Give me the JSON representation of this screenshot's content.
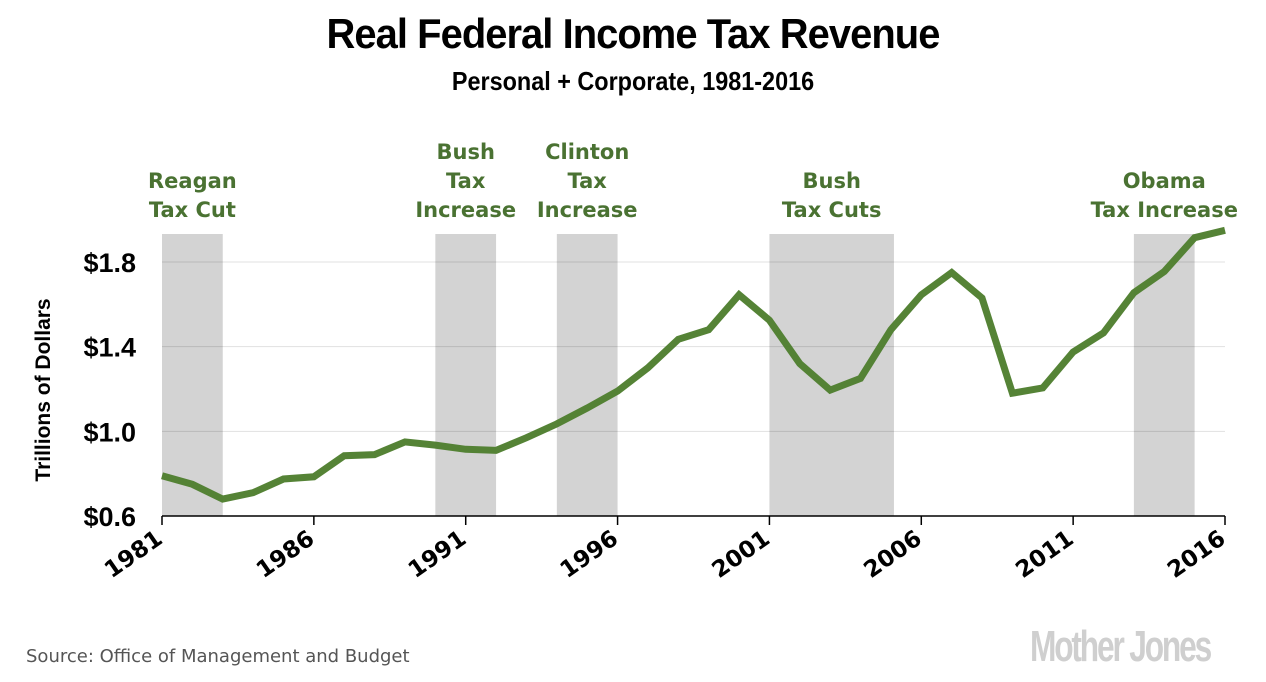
{
  "chart_data": {
    "type": "line",
    "title": "Real Federal Income Tax Revenue",
    "subtitle": "Personal + Corporate, 1981-2016",
    "xlabel": "",
    "ylabel": "Trillions of Dollars",
    "xlim": [
      1981,
      2016
    ],
    "ylim": [
      0.6,
      1.95
    ],
    "grid": true,
    "x_ticks": [
      1981,
      1986,
      1991,
      1996,
      2001,
      2006,
      2011,
      2016
    ],
    "y_ticks": [
      {
        "value": 0.6,
        "label": "$0.6"
      },
      {
        "value": 1.0,
        "label": "$1.0"
      },
      {
        "value": 1.4,
        "label": "$1.4"
      },
      {
        "value": 1.8,
        "label": "$1.8"
      }
    ],
    "series": [
      {
        "name": "Real Federal Income Tax Revenue",
        "color": "#4f7f2f",
        "x": [
          1981,
          1982,
          1983,
          1984,
          1985,
          1986,
          1987,
          1988,
          1989,
          1990,
          1991,
          1992,
          1993,
          1994,
          1995,
          1996,
          1997,
          1998,
          1999,
          2000,
          2001,
          2002,
          2003,
          2004,
          2005,
          2006,
          2007,
          2008,
          2009,
          2010,
          2011,
          2012,
          2013,
          2014,
          2015,
          2016
        ],
        "values": [
          0.79,
          0.75,
          0.68,
          0.71,
          0.775,
          0.785,
          0.885,
          0.89,
          0.95,
          0.935,
          0.915,
          0.91,
          0.97,
          1.035,
          1.11,
          1.19,
          1.3,
          1.435,
          1.48,
          1.645,
          1.525,
          1.32,
          1.195,
          1.25,
          1.48,
          1.645,
          1.75,
          1.63,
          1.18,
          1.205,
          1.375,
          1.465,
          1.655,
          1.755,
          1.915,
          1.95
        ]
      }
    ],
    "shaded_periods": [
      {
        "label_lines": [
          "Reagan",
          "Tax Cut"
        ],
        "start": 1981,
        "end": 1983
      },
      {
        "label_lines": [
          "Bush",
          "Tax",
          "Increase"
        ],
        "start": 1990,
        "end": 1992
      },
      {
        "label_lines": [
          "Clinton",
          "Tax",
          "Increase"
        ],
        "start": 1994,
        "end": 1996
      },
      {
        "label_lines": [
          "Bush",
          "Tax Cuts"
        ],
        "start": 2001,
        "end": 2005.1
      },
      {
        "label_lines": [
          "Obama",
          "Tax Increase"
        ],
        "start": 2013,
        "end": 2015
      }
    ],
    "annotation_color": "#4a7232",
    "shade_color": "#d3d3d3",
    "source": "Source: Office of Management and Budget",
    "brand": "Mother Jones"
  }
}
